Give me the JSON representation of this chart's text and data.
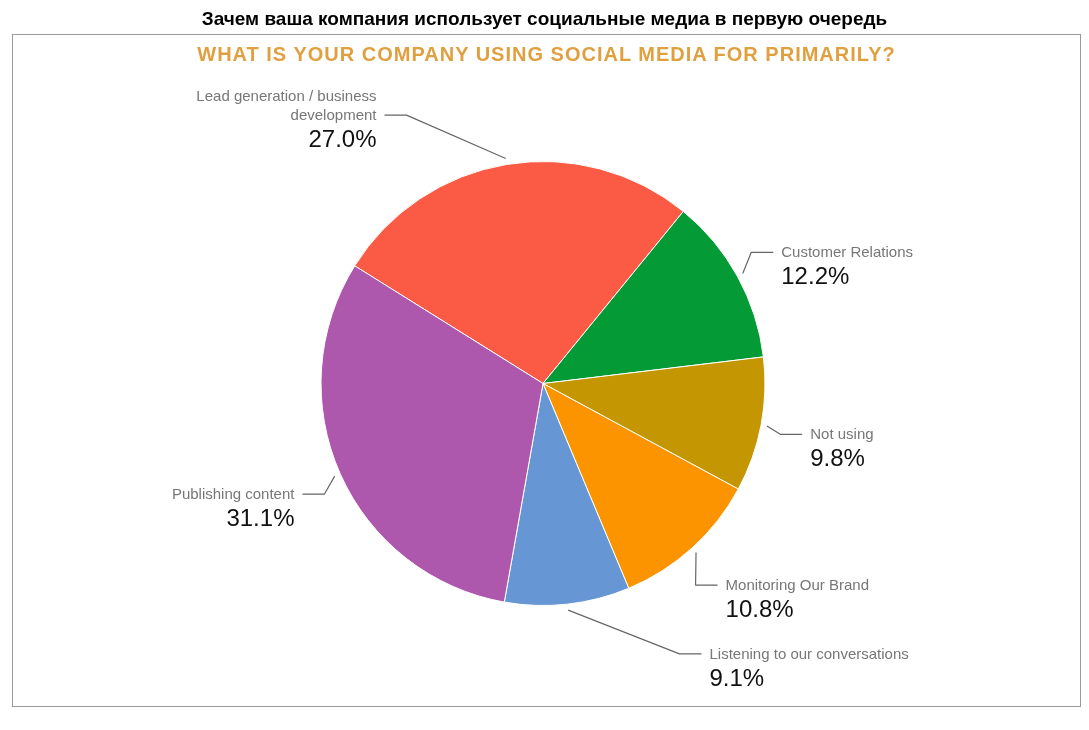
{
  "chart_data": {
    "type": "pie",
    "title": "Зачем ваша компания использует социальные медиа в первую очередь",
    "subtitle": "WHAT IS YOUR COMPANY USING SOCIAL MEDIA FOR PRIMARILY?",
    "categories": [
      "Lead generation / business development",
      "Customer Relations",
      "Not using",
      "Monitoring Our Brand",
      "Listening to our conversations",
      "Publishing content"
    ],
    "values": [
      27.0,
      12.2,
      9.8,
      10.8,
      9.1,
      31.1
    ],
    "colors": [
      "#fb5a45",
      "#049a36",
      "#c49702",
      "#fc9400",
      "#6696d4",
      "#ae58ad"
    ],
    "value_labels": [
      "27.0%",
      "12.2%",
      "9.8%",
      "10.8%",
      "9.1%",
      "31.1%"
    ],
    "legend": false
  }
}
